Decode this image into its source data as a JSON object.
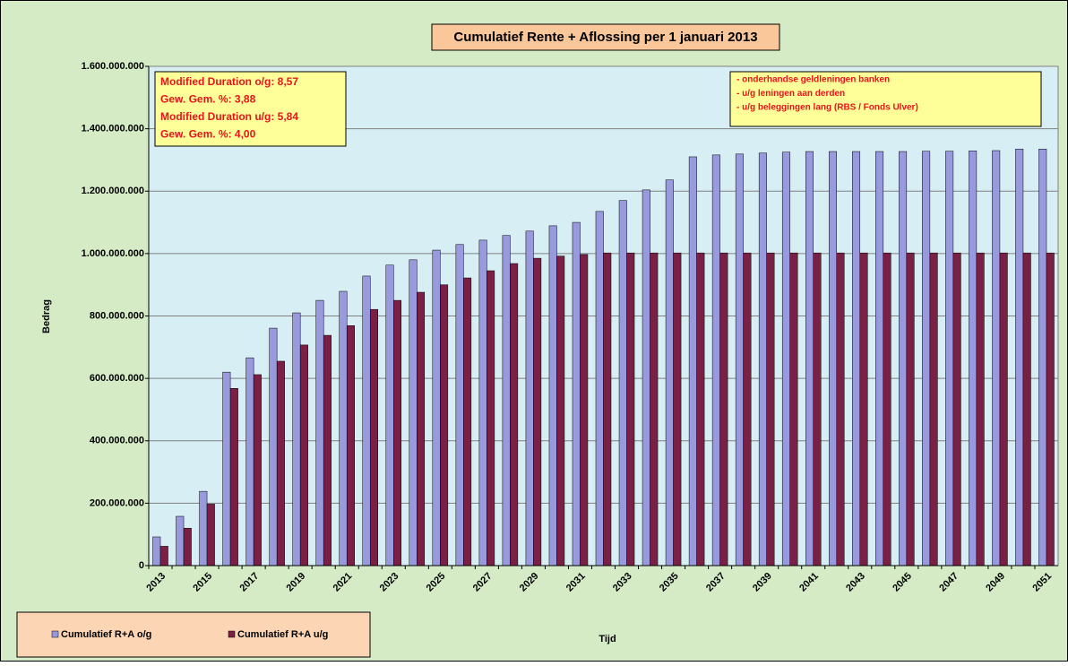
{
  "chart_data": {
    "type": "bar",
    "title": "Cumulatief Rente + Aflossing per 1 januari 2013",
    "x_label": "Tijd",
    "y_label": "Bedrag",
    "categories": [
      "2013",
      null,
      "2015",
      null,
      "2017",
      null,
      "2019",
      null,
      "2021",
      null,
      "2023",
      null,
      "2025",
      null,
      "2027",
      null,
      "2029",
      null,
      "2031",
      null,
      "2033",
      null,
      "2035",
      null,
      "2037",
      null,
      "2039",
      null,
      "2041",
      null,
      "2043",
      null,
      "2045",
      null,
      "2047",
      null,
      "2049",
      null,
      "2051"
    ],
    "series": [
      {
        "name": "Cumulatief R+A o/g",
        "color": "#9999dd",
        "values": [
          92000000,
          158000000,
          238000000,
          620000000,
          666000000,
          761000000,
          810000000,
          850000000,
          879000000,
          928000000,
          963000000,
          980000000,
          1011000000,
          1029000000,
          1043000000,
          1058000000,
          1072000000,
          1089000000,
          1100000000,
          1135000000,
          1170000000,
          1204000000,
          1236000000,
          1310000000,
          1316000000,
          1319000000,
          1322000000,
          1325000000,
          1327000000,
          1327000000,
          1327000000,
          1327000000,
          1327000000,
          1328000000,
          1328000000,
          1329000000,
          1330000000,
          1335000000,
          1335000000
        ]
      },
      {
        "name": "Cumulatief R+A u/g",
        "color": "#7b2045",
        "values": [
          62000000,
          120000000,
          197000000,
          568000000,
          612000000,
          655000000,
          707000000,
          738000000,
          769000000,
          821000000,
          850000000,
          876000000,
          900000000,
          922000000,
          945000000,
          968000000,
          985000000,
          992000000,
          997000000,
          1002000000,
          1002000000,
          1002000000,
          1002000000,
          1002000000,
          1002000000,
          1002000000,
          1002000000,
          1002000000,
          1002000000,
          1002000000,
          1002000000,
          1002000000,
          1002000000,
          1002000000,
          1002000000,
          1002000000,
          1002000000,
          1002000000,
          1002000000
        ]
      }
    ],
    "ylim": [
      0,
      1600000000
    ],
    "yticks": [
      0,
      {
        "value": 200000000,
        "label": "200.000.000"
      },
      {
        "value": 400000000,
        "label": "400.000.000"
      },
      {
        "value": 600000000,
        "label": "600.000.000"
      },
      {
        "value": 800000000,
        "label": "800.000.000"
      },
      {
        "value": 1000000000,
        "label": "1.000.000.000"
      },
      {
        "value": 1200000000,
        "label": "1.200.000.000"
      },
      {
        "value": 1400000000,
        "label": "1.400.000.000"
      },
      {
        "value": 1600000000,
        "label": "1.600.000.000"
      }
    ],
    "grid": true,
    "annotations": [
      [
        "Modified Duration o/g:  8,57",
        "Gew. Gem. %: 3,88",
        "Modified Duration u/g:  5,84",
        "Gew. Gem. %: 4,00"
      ],
      [
        "- onderhandse geldleningen banken",
        "- u/g leningen aan derden",
        "- u/g beleggingen lang (RBS / Fonds Ulver)"
      ]
    ]
  }
}
